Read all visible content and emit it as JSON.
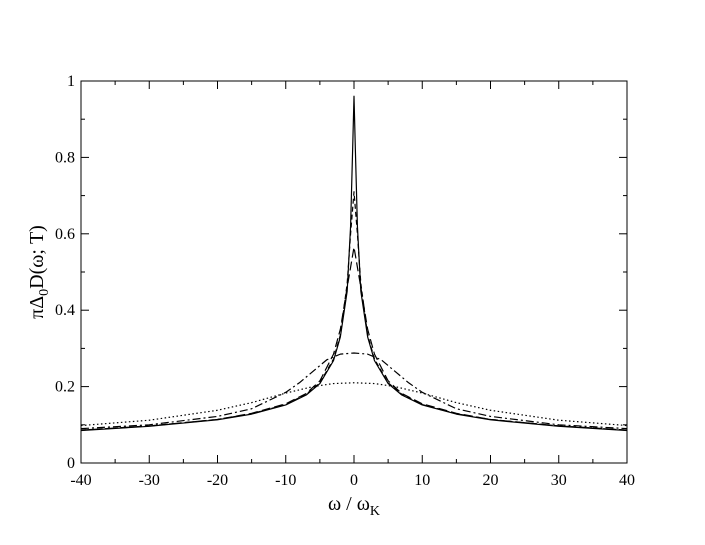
{
  "chart_data": {
    "type": "line",
    "xlabel": {
      "main": "ω / ω",
      "sub": "K"
    },
    "ylabel": {
      "pre": "πΔ",
      "sub": "0",
      "post": "D(ω; T)"
    },
    "xlim": [
      -40,
      40
    ],
    "ylim": [
      0,
      1
    ],
    "x_ticks": [
      "-40",
      "-30",
      "-20",
      "-10",
      "0",
      "10",
      "20",
      "30",
      "40"
    ],
    "y_ticks": [
      "0",
      "0.2",
      "0.4",
      "0.6",
      "0.8",
      "1"
    ],
    "grid": false,
    "legend": "none",
    "series": [
      {
        "style": "solid",
        "x": [
          -40,
          -30,
          -20,
          -15,
          -10,
          -7,
          -5,
          -3,
          -2,
          -1,
          -0.5,
          -0.2,
          0,
          0.2,
          0.5,
          1,
          2,
          3,
          5,
          7,
          10,
          15,
          20,
          30,
          40
        ],
        "y": [
          0.085,
          0.096,
          0.113,
          0.128,
          0.152,
          0.178,
          0.208,
          0.268,
          0.33,
          0.45,
          0.62,
          0.82,
          0.96,
          0.82,
          0.62,
          0.45,
          0.33,
          0.268,
          0.208,
          0.178,
          0.152,
          0.128,
          0.113,
          0.096,
          0.085
        ]
      },
      {
        "style": "dashed",
        "x": [
          -40,
          -30,
          -20,
          -15,
          -10,
          -7,
          -5,
          -3,
          -2,
          -1,
          -0.5,
          0,
          0.5,
          1,
          2,
          3,
          5,
          7,
          10,
          15,
          20,
          30,
          40
        ],
        "y": [
          0.086,
          0.097,
          0.114,
          0.129,
          0.153,
          0.18,
          0.21,
          0.272,
          0.335,
          0.47,
          0.6,
          0.71,
          0.6,
          0.47,
          0.335,
          0.272,
          0.21,
          0.18,
          0.153,
          0.129,
          0.114,
          0.097,
          0.086
        ]
      },
      {
        "style": "long-dash",
        "x": [
          -40,
          -30,
          -20,
          -15,
          -10,
          -7,
          -5,
          -3,
          -2,
          -1,
          0,
          1,
          2,
          3,
          5,
          7,
          10,
          15,
          20,
          30,
          40
        ],
        "y": [
          0.086,
          0.097,
          0.114,
          0.13,
          0.155,
          0.182,
          0.215,
          0.285,
          0.35,
          0.46,
          0.565,
          0.46,
          0.35,
          0.285,
          0.215,
          0.182,
          0.155,
          0.13,
          0.114,
          0.097,
          0.086
        ]
      },
      {
        "style": "dash-dot",
        "x": [
          -40,
          -30,
          -20,
          -15,
          -10,
          -8,
          -6,
          -4,
          -2,
          0,
          2,
          4,
          6,
          8,
          10,
          15,
          20,
          30,
          40
        ],
        "y": [
          0.09,
          0.1,
          0.122,
          0.142,
          0.185,
          0.21,
          0.24,
          0.27,
          0.285,
          0.288,
          0.285,
          0.27,
          0.24,
          0.21,
          0.185,
          0.142,
          0.122,
          0.1,
          0.09
        ]
      },
      {
        "style": "dotted",
        "x": [
          -40,
          -30,
          -20,
          -15,
          -10,
          -6,
          -3,
          0,
          3,
          6,
          10,
          15,
          20,
          30,
          40
        ],
        "y": [
          0.098,
          0.112,
          0.138,
          0.158,
          0.183,
          0.2,
          0.208,
          0.21,
          0.208,
          0.2,
          0.183,
          0.158,
          0.138,
          0.112,
          0.098
        ]
      }
    ]
  }
}
